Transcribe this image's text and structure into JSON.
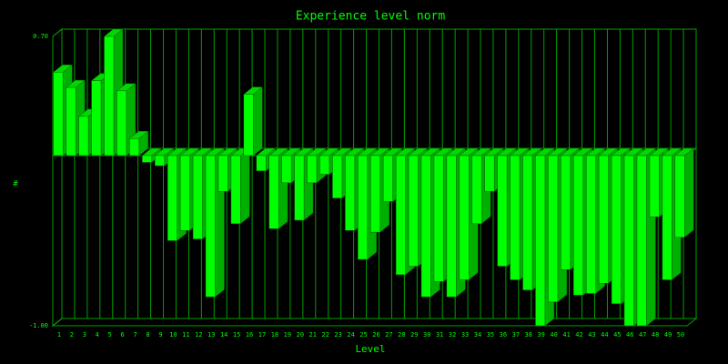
{
  "chart_data": {
    "type": "bar3d",
    "title": "Experience level norm",
    "x_label": "Level",
    "y_label": "#",
    "categories": [
      "1",
      "2",
      "3",
      "4",
      "5",
      "6",
      "7",
      "8",
      "9",
      "10",
      "11",
      "12",
      "13",
      "14",
      "15",
      "16",
      "17",
      "18",
      "19",
      "20",
      "21",
      "22",
      "23",
      "24",
      "25",
      "26",
      "27",
      "28",
      "29",
      "30",
      "31",
      "32",
      "33",
      "34",
      "35",
      "36",
      "37",
      "38",
      "39",
      "40",
      "41",
      "42",
      "43",
      "44",
      "45",
      "46",
      "47",
      "48",
      "49",
      "50"
    ],
    "values": [
      0.49,
      0.4,
      0.23,
      0.44,
      0.7,
      0.38,
      0.1,
      -0.04,
      -0.06,
      -0.5,
      -0.44,
      -0.49,
      -0.83,
      -0.21,
      -0.4,
      0.36,
      -0.09,
      -0.43,
      -0.16,
      -0.38,
      -0.16,
      -0.11,
      -0.25,
      -0.44,
      -0.61,
      -0.45,
      -0.27,
      -0.7,
      -0.65,
      -0.83,
      -0.74,
      -0.83,
      -0.73,
      -0.4,
      -0.21,
      -0.65,
      -0.73,
      -0.79,
      -1.0,
      -0.86,
      -0.67,
      -0.82,
      -0.81,
      -0.75,
      -0.87,
      -1.0,
      -1.0,
      -0.36,
      -0.73,
      -0.48
    ],
    "color": "#00ff00",
    "ylim": [
      -1.0,
      0.7
    ],
    "yticks": [
      {
        "value": 0.7,
        "label": "0.70"
      },
      {
        "value": -1.0,
        "label": "-1.00"
      }
    ],
    "grid": true
  }
}
